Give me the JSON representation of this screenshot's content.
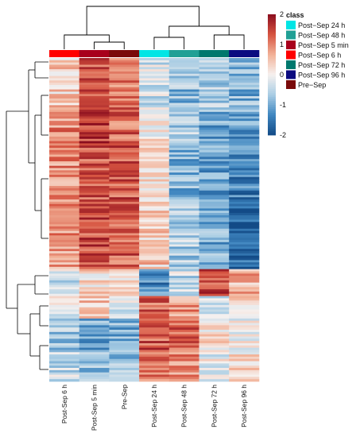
{
  "chart_data": {
    "type": "heatmap",
    "title": "",
    "columns": [
      "Post-Sep 6 h",
      "Post-Sep 5 min",
      "Pre-Sep",
      "Post-Sep 24 h",
      "Post-Sep 48 h",
      "Post-Sep 72 h",
      "Post-Sep 96 h"
    ],
    "column_classes": [
      "Post-Sep 6 h",
      "Post-Sep 5 min",
      "Pre-Sep",
      "Post-Sep 24 h",
      "Post-Sep 48 h",
      "Post-Sep 72 h",
      "Post-Sep 96 h"
    ],
    "color_scale": {
      "min": -2,
      "max": 2,
      "ticks": [
        "2",
        "1",
        "0",
        "-1",
        "-2"
      ],
      "ticks_values": [
        2,
        1,
        0,
        -1,
        -2
      ],
      "colors": [
        "#134b87",
        "#3f86c0",
        "#a9cde4",
        "#f6f1ef",
        "#f2b197",
        "#d65340",
        "#8b0d1e"
      ]
    },
    "legend": {
      "title": "class",
      "items": [
        {
          "label": "Post−Sep 24 h",
          "color": "#00e5e5"
        },
        {
          "label": "Post−Sep 48 h",
          "color": "#21a095"
        },
        {
          "label": "Post−Sep 5 min",
          "color": "#a8001c"
        },
        {
          "label": "Post−Sep 6 h",
          "color": "#ff0000"
        },
        {
          "label": "Post−Sep 72 h",
          "color": "#00786d"
        },
        {
          "label": "Post−Sep 96 h",
          "color": "#0b0b80"
        },
        {
          "label": "Pre−Sep",
          "color": "#7a0a0a"
        }
      ]
    },
    "row_blocks": [
      {
        "rows": 22,
        "values": [
          0.4,
          1.3,
          1.0,
          -0.3,
          -0.8,
          -0.6,
          -0.9
        ]
      },
      {
        "rows": 16,
        "values": [
          0.9,
          1.5,
          1.2,
          0.1,
          -0.6,
          -1.0,
          -1.1
        ]
      },
      {
        "rows": 28,
        "values": [
          0.9,
          1.4,
          1.3,
          0.2,
          -0.9,
          -1.1,
          -1.4
        ]
      },
      {
        "rows": 28,
        "values": [
          0.8,
          1.4,
          1.3,
          0.4,
          -0.6,
          -1.0,
          -1.7
        ]
      },
      {
        "rows": 12,
        "values": [
          -0.3,
          0.2,
          0.3,
          -1.3,
          -0.4,
          1.4,
          0.6
        ]
      },
      {
        "rows": 10,
        "values": [
          0.0,
          0.5,
          -0.3,
          1.2,
          0.9,
          -0.5,
          0.4
        ]
      },
      {
        "rows": 14,
        "values": [
          -0.6,
          -1.0,
          -0.9,
          1.3,
          1.2,
          0.3,
          -0.1
        ]
      },
      {
        "rows": 14,
        "values": [
          -0.4,
          -0.8,
          -0.7,
          1.0,
          0.9,
          -0.1,
          0.2
        ]
      }
    ],
    "noise": 0.55
  }
}
